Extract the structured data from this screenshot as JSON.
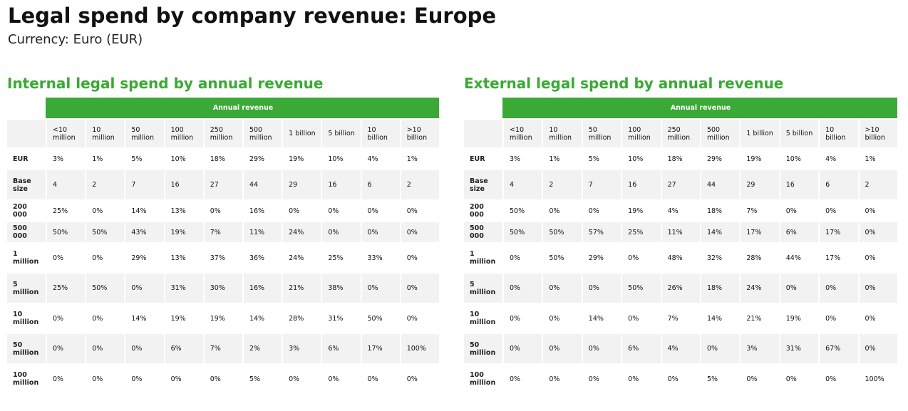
{
  "title": "Legal spend by company revenue: Europe",
  "subtitle": "Currency: Euro (EUR)",
  "columns": [
    "<10 million",
    "10 million",
    "50 million",
    "100 million",
    "250 million",
    "500 million",
    "1 billion",
    "5 billion",
    "10 billion",
    ">10 billion"
  ],
  "colors": {
    "accent": "#3aa935",
    "shade": "#f2f2f2"
  },
  "tables": [
    {
      "heading": "Internal legal spend by annual revenue",
      "band": "Annual revenue",
      "rows": [
        {
          "label": "EUR",
          "values": [
            "3%",
            "1%",
            "5%",
            "10%",
            "18%",
            "29%",
            "19%",
            "10%",
            "4%",
            "1%"
          ]
        },
        {
          "label": "Base size",
          "values": [
            "4",
            "2",
            "7",
            "16",
            "27",
            "44",
            "29",
            "16",
            "6",
            "2"
          ]
        },
        {
          "label": "200 000",
          "values": [
            "25%",
            "0%",
            "14%",
            "13%",
            "0%",
            "16%",
            "0%",
            "0%",
            "0%",
            "0%"
          ]
        },
        {
          "label": "500 000",
          "values": [
            "50%",
            "50%",
            "43%",
            "19%",
            "7%",
            "11%",
            "24%",
            "0%",
            "0%",
            "0%"
          ]
        },
        {
          "label": "1 million",
          "values": [
            "0%",
            "0%",
            "29%",
            "13%",
            "37%",
            "36%",
            "24%",
            "25%",
            "33%",
            "0%"
          ]
        },
        {
          "label": "5 million",
          "values": [
            "25%",
            "50%",
            "0%",
            "31%",
            "30%",
            "16%",
            "21%",
            "38%",
            "0%",
            "0%"
          ]
        },
        {
          "label": "10 million",
          "values": [
            "0%",
            "0%",
            "14%",
            "19%",
            "19%",
            "14%",
            "28%",
            "31%",
            "50%",
            "0%"
          ]
        },
        {
          "label": "50 million",
          "values": [
            "0%",
            "0%",
            "0%",
            "6%",
            "7%",
            "2%",
            "3%",
            "6%",
            "17%",
            "100%"
          ]
        },
        {
          "label": "100 million",
          "values": [
            "0%",
            "0%",
            "0%",
            "0%",
            "0%",
            "5%",
            "0%",
            "0%",
            "0%",
            "0%"
          ]
        }
      ]
    },
    {
      "heading": "External legal spend by annual revenue",
      "band": "Annual revenue",
      "rows": [
        {
          "label": "EUR",
          "values": [
            "3%",
            "1%",
            "5%",
            "10%",
            "18%",
            "29%",
            "19%",
            "10%",
            "4%",
            "1%"
          ]
        },
        {
          "label": "Base size",
          "values": [
            "4",
            "2",
            "7",
            "16",
            "27",
            "44",
            "29",
            "16",
            "6",
            "2"
          ]
        },
        {
          "label": "200 000",
          "values": [
            "50%",
            "0%",
            "0%",
            "19%",
            "4%",
            "18%",
            "7%",
            "0%",
            "0%",
            "0%"
          ]
        },
        {
          "label": "500 000",
          "values": [
            "50%",
            "50%",
            "57%",
            "25%",
            "11%",
            "14%",
            "17%",
            "6%",
            "17%",
            "0%"
          ]
        },
        {
          "label": "1 million",
          "values": [
            "0%",
            "50%",
            "29%",
            "0%",
            "48%",
            "32%",
            "28%",
            "44%",
            "17%",
            "0%"
          ]
        },
        {
          "label": "5 million",
          "values": [
            "0%",
            "0%",
            "0%",
            "50%",
            "26%",
            "18%",
            "24%",
            "0%",
            "0%",
            "0%"
          ]
        },
        {
          "label": "10 million",
          "values": [
            "0%",
            "0%",
            "14%",
            "0%",
            "7%",
            "14%",
            "21%",
            "19%",
            "0%",
            "0%"
          ]
        },
        {
          "label": "50 million",
          "values": [
            "0%",
            "0%",
            "0%",
            "6%",
            "4%",
            "0%",
            "3%",
            "31%",
            "67%",
            "0%"
          ]
        },
        {
          "label": "100 million",
          "values": [
            "0%",
            "0%",
            "0%",
            "0%",
            "0%",
            "5%",
            "0%",
            "0%",
            "0%",
            "100%"
          ]
        }
      ]
    }
  ]
}
